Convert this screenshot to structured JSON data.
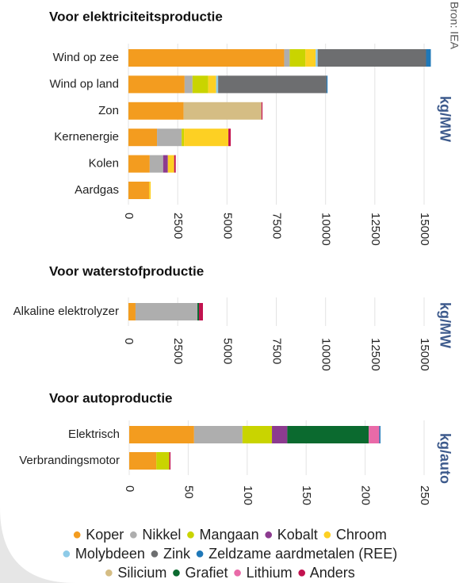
{
  "source": "Bron: IEA",
  "legend": [
    {
      "name": "Koper",
      "color": "#f39c1f"
    },
    {
      "name": "Nikkel",
      "color": "#aeaeae"
    },
    {
      "name": "Mangaan",
      "color": "#c9d400"
    },
    {
      "name": "Kobalt",
      "color": "#8c3b8f"
    },
    {
      "name": "Chroom",
      "color": "#fdd023"
    },
    {
      "name": "Molybdeen",
      "color": "#8ecbe8"
    },
    {
      "name": "Zink",
      "color": "#6d6e70"
    },
    {
      "name": "Zeldzame aardmetalen (REE)",
      "color": "#1f78b8"
    },
    {
      "name": "Silicium",
      "color": "#d5bd84"
    },
    {
      "name": "Grafiet",
      "color": "#0b6a2f"
    },
    {
      "name": "Lithium",
      "color": "#e96aa8"
    },
    {
      "name": "Anders",
      "color": "#c2124f"
    }
  ],
  "chart_data": [
    {
      "type": "bar",
      "title": "Voor elektriciteitsproductie",
      "unit": "kg/MW",
      "categories": [
        "Wind op zee",
        "Wind op land",
        "Zon",
        "Kernenergie",
        "Kolen",
        "Aardgas"
      ],
      "xlim": [
        0,
        15000
      ],
      "xticks": [
        0,
        2500,
        5000,
        7500,
        10000,
        12500,
        15000
      ],
      "grid": true,
      "series": [
        {
          "name": "Koper",
          "color": "#f39c1f",
          "values": [
            7900,
            2850,
            2800,
            1450,
            1080,
            1050
          ]
        },
        {
          "name": "Nikkel",
          "color": "#aeaeae",
          "values": [
            280,
            400,
            0,
            1250,
            680,
            0
          ]
        },
        {
          "name": "Mangaan",
          "color": "#c9d400",
          "values": [
            800,
            800,
            0,
            120,
            0,
            0
          ]
        },
        {
          "name": "Kobalt",
          "color": "#8c3b8f",
          "values": [
            0,
            0,
            0,
            0,
            240,
            0
          ]
        },
        {
          "name": "Chroom",
          "color": "#fdd023",
          "values": [
            520,
            400,
            0,
            2250,
            320,
            80
          ]
        },
        {
          "name": "Molybdeen",
          "color": "#8ecbe8",
          "values": [
            100,
            100,
            0,
            0,
            0,
            0
          ]
        },
        {
          "name": "Zink",
          "color": "#6d6e70",
          "values": [
            5500,
            5500,
            0,
            0,
            0,
            0
          ]
        },
        {
          "name": "Zeldzame aardmetalen (REE)",
          "color": "#1f78b8",
          "values": [
            240,
            50,
            0,
            0,
            0,
            0
          ]
        },
        {
          "name": "Silicium",
          "color": "#d5bd84",
          "values": [
            0,
            0,
            3950,
            0,
            0,
            0
          ]
        },
        {
          "name": "Anders",
          "color": "#c2124f",
          "values": [
            0,
            0,
            50,
            120,
            80,
            0
          ]
        }
      ]
    },
    {
      "type": "bar",
      "title": "Voor waterstofproductie",
      "unit": "kg/MW",
      "categories": [
        "Alkaline elektrolyzer"
      ],
      "xlim": [
        0,
        15000
      ],
      "xticks": [
        0,
        2500,
        5000,
        7500,
        10000,
        12500,
        15000
      ],
      "grid": true,
      "series": [
        {
          "name": "Koper",
          "color": "#f39c1f",
          "values": [
            360
          ]
        },
        {
          "name": "Nikkel",
          "color": "#aeaeae",
          "values": [
            3140
          ]
        },
        {
          "name": "Grafiet",
          "color": "#0b6a2f",
          "values": [
            80
          ]
        },
        {
          "name": "Anders",
          "color": "#c2124f",
          "values": [
            200
          ]
        }
      ]
    },
    {
      "type": "bar",
      "title": "Voor autoproductie",
      "unit": "kg/auto",
      "categories": [
        "Elektrisch",
        "Verbrandingsmotor"
      ],
      "xlim": [
        0,
        250
      ],
      "xticks": [
        0,
        50,
        100,
        150,
        200,
        250
      ],
      "grid": true,
      "series": [
        {
          "name": "Koper",
          "color": "#f39c1f",
          "values": [
            55,
            23
          ]
        },
        {
          "name": "Nikkel",
          "color": "#aeaeae",
          "values": [
            41,
            0
          ]
        },
        {
          "name": "Mangaan",
          "color": "#c9d400",
          "values": [
            25,
            11
          ]
        },
        {
          "name": "Kobalt",
          "color": "#8c3b8f",
          "values": [
            13,
            0
          ]
        },
        {
          "name": "Grafiet",
          "color": "#0b6a2f",
          "values": [
            69,
            0
          ]
        },
        {
          "name": "Lithium",
          "color": "#e96aa8",
          "values": [
            9,
            0
          ]
        },
        {
          "name": "Zeldzame aardmetalen (REE)",
          "color": "#1f78b8",
          "values": [
            1,
            0
          ]
        },
        {
          "name": "Anders",
          "color": "#c2124f",
          "values": [
            0,
            1
          ]
        }
      ]
    }
  ]
}
